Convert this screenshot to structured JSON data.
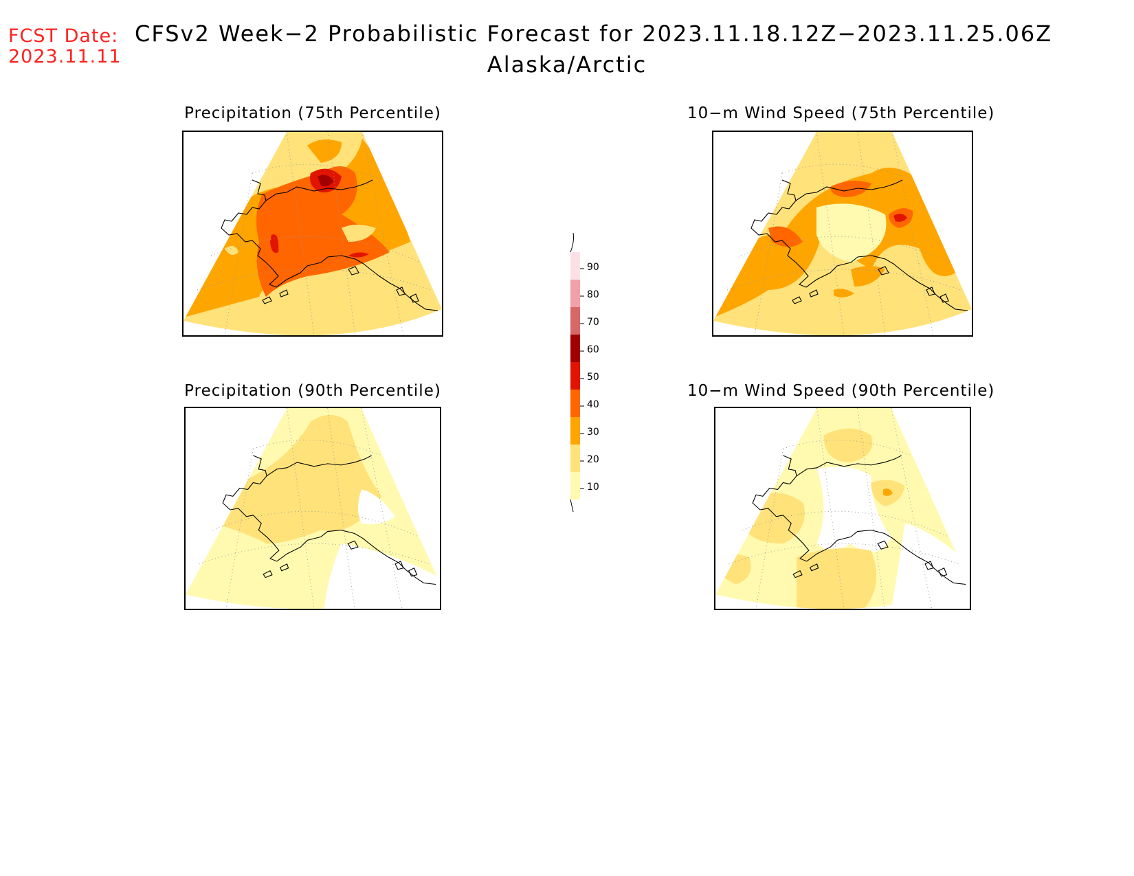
{
  "header": {
    "fcst_label": "FCST Date:",
    "fcst_date": "2023.11.11",
    "title": "CFSv2 Week−2 Probabilistic Forecast for 2023.11.18.12Z−2023.11.25.06Z",
    "region": "Alaska/Arctic"
  },
  "panels": [
    {
      "title": "Precipitation (75th Percentile)",
      "scheme": "high"
    },
    {
      "title": "10−m Wind Speed (75th Percentile)",
      "scheme": "mid"
    },
    {
      "title": "Precipitation (90th Percentile)",
      "scheme": "low"
    },
    {
      "title": "10−m Wind Speed (90th Percentile)",
      "scheme": "lowwhite"
    }
  ],
  "colorbar": {
    "labels": [
      "90",
      "80",
      "70",
      "60",
      "50",
      "40",
      "30",
      "20",
      "10"
    ],
    "colors": [
      "#fde0e6",
      "#f0a0a8",
      "#d86868",
      "#a00000",
      "#e01400",
      "#ff6600",
      "#ffa500",
      "#ffe27a",
      "#fffab0"
    ]
  }
}
